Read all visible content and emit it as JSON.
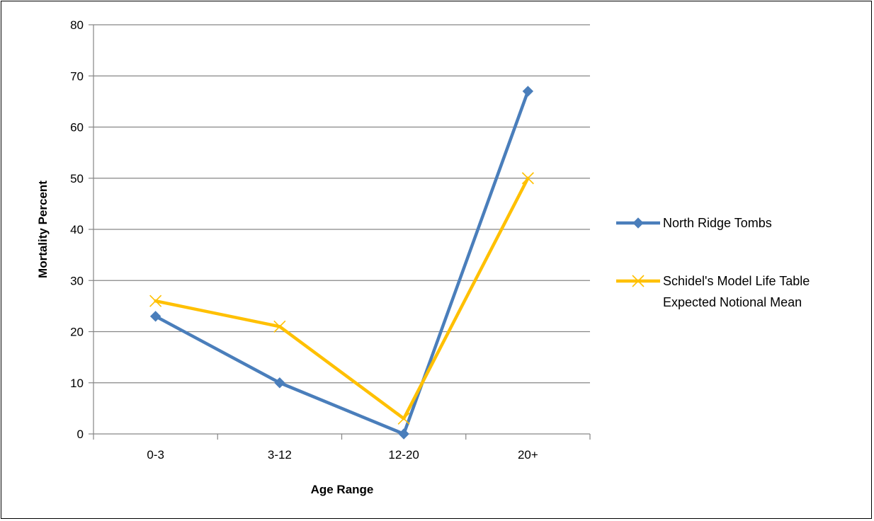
{
  "chart_data": {
    "type": "line",
    "categories": [
      "0-3",
      "3-12",
      "12-20",
      "20+"
    ],
    "series": [
      {
        "name": "North Ridge Tombs",
        "values": [
          23,
          10,
          0,
          67
        ],
        "color": "#4a7ebb",
        "marker": "diamond"
      },
      {
        "name": "Schidel's Model Life Table Expected Notional Mean",
        "name_lines": [
          "Schidel's Model Life Table",
          "Expected Notional Mean"
        ],
        "values": [
          26,
          21,
          3,
          50
        ],
        "color": "#ffc000",
        "marker": "x"
      }
    ],
    "xlabel": "Age Range",
    "ylabel": "Mortality Percent",
    "ylim": [
      0,
      80
    ],
    "yticks": [
      0,
      10,
      20,
      30,
      40,
      50,
      60,
      70,
      80
    ],
    "grid": true,
    "gridline_color": "#868686",
    "legend_position": "right"
  }
}
